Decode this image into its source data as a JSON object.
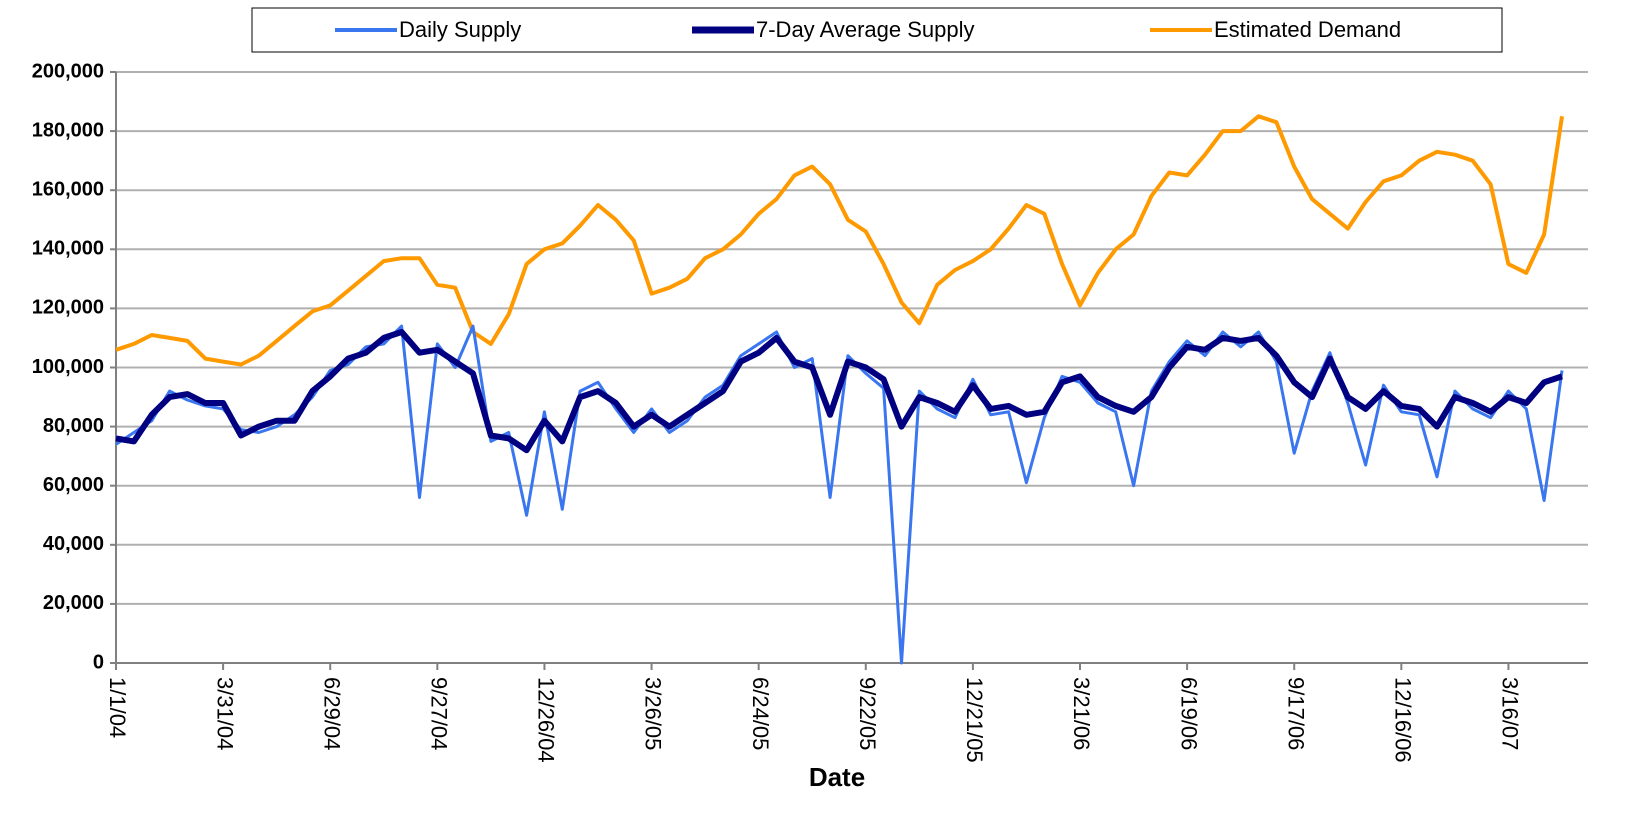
{
  "chart_data": {
    "type": "line",
    "x_label": "Date",
    "x": [
      "1/1/04",
      "1/16/04",
      "1/31/04",
      "2/15/04",
      "3/1/04",
      "3/16/04",
      "3/31/04",
      "4/15/04",
      "4/30/04",
      "5/15/04",
      "5/30/04",
      "6/14/04",
      "6/29/04",
      "7/14/04",
      "7/29/04",
      "8/13/04",
      "8/28/04",
      "9/12/04",
      "9/27/04",
      "10/12/04",
      "10/27/04",
      "11/11/04",
      "11/26/04",
      "12/11/04",
      "12/26/04",
      "1/10/05",
      "1/25/05",
      "2/9/05",
      "2/24/05",
      "3/11/05",
      "3/26/05",
      "4/10/05",
      "4/25/05",
      "5/10/05",
      "5/25/05",
      "6/9/05",
      "6/24/05",
      "7/9/05",
      "7/24/05",
      "8/8/05",
      "8/23/05",
      "9/7/05",
      "9/22/05",
      "10/7/05",
      "10/22/05",
      "11/6/05",
      "11/21/05",
      "12/6/05",
      "12/21/05",
      "1/5/06",
      "1/20/06",
      "2/4/06",
      "2/19/06",
      "3/6/06",
      "3/21/06",
      "4/5/06",
      "4/20/06",
      "5/5/06",
      "5/20/06",
      "6/4/06",
      "6/19/06",
      "7/4/06",
      "7/19/06",
      "8/3/06",
      "8/18/06",
      "9/2/06",
      "9/17/06",
      "10/2/06",
      "10/17/06",
      "11/1/06",
      "11/16/06",
      "12/1/06",
      "12/16/06",
      "12/31/06",
      "1/15/07",
      "1/30/07",
      "2/14/07",
      "3/1/07",
      "3/16/07",
      "3/31/07",
      "4/15/07",
      "4/30/07"
    ],
    "xticks": [
      "1/1/04",
      "3/31/04",
      "6/29/04",
      "9/27/04",
      "12/26/04",
      "3/26/05",
      "6/24/05",
      "9/22/05",
      "12/21/05",
      "3/21/06",
      "6/19/06",
      "9/17/06",
      "12/16/06",
      "3/16/07"
    ],
    "ylim": [
      0,
      200000
    ],
    "yticks": [
      {
        "value": 0,
        "label": "0"
      },
      {
        "value": 20000,
        "label": "20,000"
      },
      {
        "value": 40000,
        "label": "40,000"
      },
      {
        "value": 60000,
        "label": "60,000"
      },
      {
        "value": 80000,
        "label": "80,000"
      },
      {
        "value": 100000,
        "label": "100,000"
      },
      {
        "value": 120000,
        "label": "120,000"
      },
      {
        "value": 140000,
        "label": "140,000"
      },
      {
        "value": 160000,
        "label": "160,000"
      },
      {
        "value": 180000,
        "label": "180,000"
      },
      {
        "value": 200000,
        "label": "200,000"
      }
    ],
    "grid": true,
    "legend": "top",
    "series": [
      {
        "name": "Daily Supply",
        "color": "#3a76f0",
        "values": [
          74000,
          78000,
          82000,
          92000,
          89000,
          87000,
          86000,
          79000,
          78000,
          80000,
          84000,
          90000,
          99000,
          101000,
          107000,
          108000,
          114000,
          56000,
          108000,
          100000,
          114000,
          75000,
          78000,
          50000,
          85000,
          52000,
          92000,
          95000,
          86000,
          78000,
          86000,
          78000,
          82000,
          90000,
          94000,
          104000,
          108000,
          112000,
          100000,
          103000,
          56000,
          104000,
          98000,
          93000,
          0,
          92000,
          86000,
          83000,
          96000,
          84000,
          85000,
          61000,
          83000,
          97000,
          95000,
          88000,
          85000,
          60000,
          92000,
          102000,
          109000,
          104000,
          112000,
          107000,
          112000,
          102000,
          71000,
          92000,
          105000,
          88000,
          67000,
          94000,
          85000,
          84000,
          63000,
          92000,
          86000,
          83000,
          92000,
          86000,
          55000,
          99000
        ]
      },
      {
        "name": "7-Day Average Supply",
        "color": "#000080",
        "values": [
          76000,
          75000,
          84000,
          90000,
          91000,
          88000,
          88000,
          77000,
          80000,
          82000,
          82000,
          92000,
          97000,
          103000,
          105000,
          110000,
          112000,
          105000,
          106000,
          102000,
          98000,
          77000,
          76000,
          72000,
          82000,
          75000,
          90000,
          92000,
          88000,
          80000,
          84000,
          80000,
          84000,
          88000,
          92000,
          102000,
          105000,
          110000,
          102000,
          100000,
          84000,
          102000,
          100000,
          96000,
          80000,
          90000,
          88000,
          85000,
          94000,
          86000,
          87000,
          84000,
          85000,
          95000,
          97000,
          90000,
          87000,
          85000,
          90000,
          100000,
          107000,
          106000,
          110000,
          109000,
          110000,
          104000,
          95000,
          90000,
          103000,
          90000,
          86000,
          92000,
          87000,
          86000,
          80000,
          90000,
          88000,
          85000,
          90000,
          88000,
          95000,
          97000
        ]
      },
      {
        "name": "Estimated Demand",
        "color": "#ff9900",
        "values": [
          106000,
          108000,
          111000,
          110000,
          109000,
          103000,
          102000,
          101000,
          104000,
          109000,
          114000,
          119000,
          121000,
          126000,
          131000,
          136000,
          137000,
          137000,
          128000,
          127000,
          112000,
          108000,
          118000,
          135000,
          140000,
          142000,
          148000,
          155000,
          150000,
          143000,
          125000,
          127000,
          130000,
          137000,
          140000,
          145000,
          152000,
          157000,
          165000,
          168000,
          162000,
          150000,
          146000,
          135000,
          122000,
          115000,
          128000,
          133000,
          136000,
          140000,
          147000,
          155000,
          152000,
          135000,
          121000,
          132000,
          140000,
          145000,
          158000,
          166000,
          165000,
          172000,
          180000,
          180000,
          185000,
          183000,
          168000,
          157000,
          152000,
          147000,
          156000,
          163000,
          165000,
          170000,
          173000,
          172000,
          170000,
          162000,
          135000,
          132000,
          145000,
          185000
        ]
      }
    ]
  }
}
